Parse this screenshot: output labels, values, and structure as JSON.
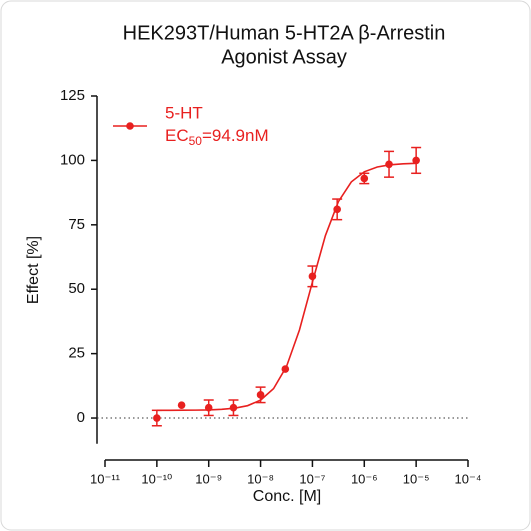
{
  "chart_data": {
    "type": "scatter",
    "title": [
      "HEK293T/Human 5-HT2A β-Arrestin",
      "Agonist Assay"
    ],
    "x_label": "Conc. [M]",
    "y_label": "Effect  [%]",
    "x_scale": "log",
    "xlim": [
      1e-11,
      0.0001
    ],
    "xticks": [
      {
        "value": 1e-11,
        "label": "10⁻¹¹"
      },
      {
        "value": 1e-10,
        "label": "10⁻¹⁰"
      },
      {
        "value": 1e-09,
        "label": "10⁻⁹"
      },
      {
        "value": 1e-08,
        "label": "10⁻⁸"
      },
      {
        "value": 1e-07,
        "label": "10⁻⁷"
      },
      {
        "value": 1e-06,
        "label": "10⁻⁶"
      },
      {
        "value": 1e-05,
        "label": "10⁻⁵"
      },
      {
        "value": 0.0001,
        "label": "10⁻⁴"
      }
    ],
    "ylim": [
      -10,
      125
    ],
    "yticks": [
      0,
      25,
      50,
      75,
      100,
      125
    ],
    "zero_line": true,
    "legend": "upper left",
    "series": [
      {
        "name": "5-HT",
        "color": "#e8201f",
        "x": [
          1e-10,
          3e-10,
          1e-09,
          3e-09,
          1e-08,
          3e-08,
          1e-07,
          3e-07,
          1e-06,
          3e-06,
          1e-05
        ],
        "values": [
          0,
          5,
          4,
          4,
          9,
          19,
          55,
          81,
          93,
          98.5,
          100
        ],
        "errors": [
          3,
          null,
          3,
          3,
          3,
          null,
          4,
          4,
          2,
          5,
          5
        ]
      }
    ],
    "curve": {
      "x": [
        1e-10,
        1.78e-10,
        3.16e-10,
        5.62e-10,
        1e-09,
        1.78e-09,
        3.16e-09,
        5.62e-09,
        1e-08,
        1.78e-08,
        3.16e-08,
        5.62e-08,
        1e-07,
        1.78e-07,
        3.16e-07,
        5.62e-07,
        1e-06,
        1.78e-06,
        3.16e-06,
        5.62e-06,
        1e-05
      ],
      "values": [
        3.0,
        3.01,
        3.03,
        3.07,
        3.16,
        3.37,
        3.81,
        4.8,
        6.95,
        11.41,
        19.97,
        34.17,
        52.77,
        70.84,
        83.97,
        91.65,
        95.58,
        97.44,
        98.3,
        98.68,
        98.86
      ]
    },
    "annotation": {
      "text": "EC",
      "subscript": "50",
      "suffix": "=94.9nM"
    }
  }
}
